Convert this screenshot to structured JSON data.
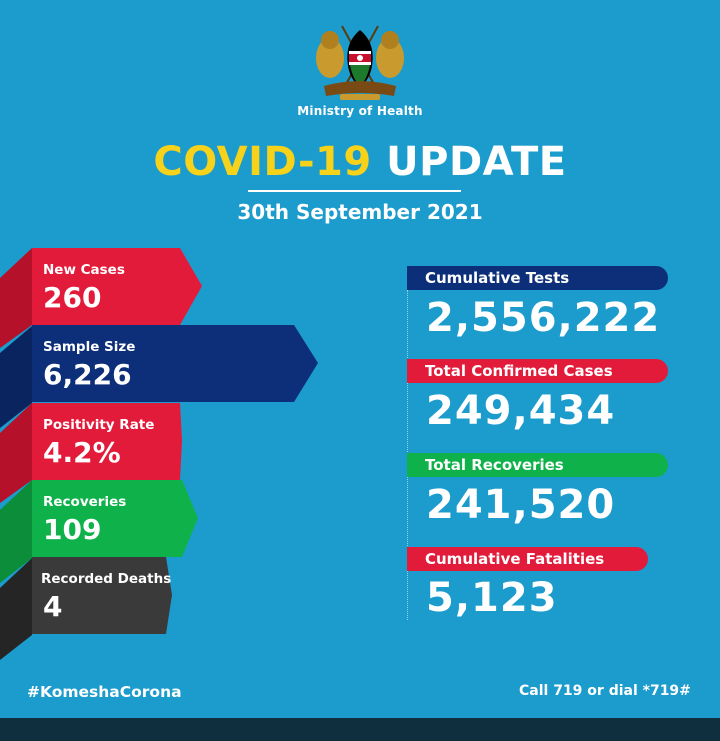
{
  "header": {
    "ministry": "Ministry of Health",
    "title_part1": "COVID-19",
    "title_part2": "UPDATE",
    "date": "30th September 2021",
    "emblem": "kenya-coat-of-arms"
  },
  "left_stats": [
    {
      "label": "New Cases",
      "value": "260",
      "color": "#e31b3b"
    },
    {
      "label": "Sample Size",
      "value": "6,226",
      "color": "#0d2f7a"
    },
    {
      "label": "Positivity Rate",
      "value": "4.2%",
      "color": "#e31b3b"
    },
    {
      "label": "Recoveries",
      "value": "109",
      "color": "#0fb24a"
    },
    {
      "label": "Recorded Deaths",
      "value": "4",
      "color": "#3a3a3a"
    }
  ],
  "right_stats": [
    {
      "label": "Cumulative Tests",
      "value": "2,556,222",
      "color": "#0d2f7a"
    },
    {
      "label": "Total Confirmed Cases",
      "value": "249,434",
      "color": "#e31b3b"
    },
    {
      "label": "Total Recoveries",
      "value": "241,520",
      "color": "#0fb24a"
    },
    {
      "label": "Cumulative Fatalities",
      "value": "5,123",
      "color": "#e31b3b"
    }
  ],
  "footer": {
    "hashtag": "#KomeshaCorona",
    "hotline": "Call 719 or dial *719#"
  },
  "colors": {
    "background": "#1c9ccd",
    "accent_yellow": "#f6d21b"
  }
}
